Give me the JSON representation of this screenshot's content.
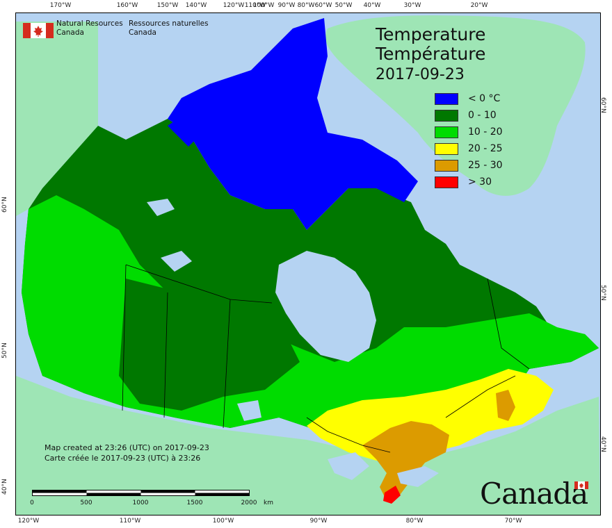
{
  "agency": {
    "name_en_line1": "Natural Resources",
    "name_en_line2": "Canada",
    "name_fr_line1": "Ressources naturelles",
    "name_fr_line2": "Canada"
  },
  "title": {
    "en": "Temperature",
    "fr": "Température",
    "date": "2017-09-23"
  },
  "legend": [
    {
      "label": "< 0 °C",
      "color": "#0000ff"
    },
    {
      "label": "0 - 10",
      "color": "#007800"
    },
    {
      "label": "10 - 20",
      "color": "#00dc00"
    },
    {
      "label": "20 - 25",
      "color": "#ffff00"
    },
    {
      "label": "25 - 30",
      "color": "#dc9b00"
    },
    {
      "label": "> 30",
      "color": "#ff0000"
    }
  ],
  "credit": {
    "en": "Map created at 23:26 (UTC) on 2017-09-23",
    "fr": "Carte créée le 2017-09-23 (UTC) à 23:26"
  },
  "scale": {
    "labels": [
      "0",
      "500",
      "1000",
      "1500",
      "2000"
    ],
    "unit": "km"
  },
  "wordmark": "Canada",
  "graticule": {
    "top": [
      "170°W",
      "160°W",
      "150°W",
      "140°W",
      "120°W",
      "110°W",
      "100°W",
      "90°W",
      "80°W",
      "60°W",
      "50°W",
      "40°W",
      "30°W",
      "20°W"
    ],
    "bottom": [
      "120°W",
      "110°W",
      "100°W",
      "90°W",
      "80°W",
      "70°W"
    ],
    "left": [
      "60°N",
      "50°N",
      "40°N"
    ],
    "right": [
      "60°N",
      "50°N",
      "40°N"
    ]
  },
  "colors": {
    "water": "#b5d3f2",
    "foreign_land": "#9ee5b5",
    "border": "#000000"
  }
}
